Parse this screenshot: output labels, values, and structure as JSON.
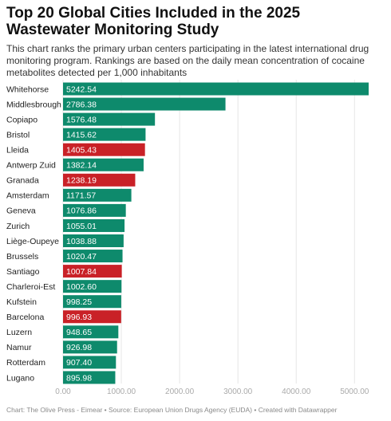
{
  "header": {
    "title": "Top 20 Global Cities Included in the 2025 Wastewater Monitoring Study",
    "subtitle": "This chart ranks the primary urban centers participating in the latest international drug monitoring program. Rankings are based on the daily mean concentration of cocaine metabolites detected per 1,000 inhabitants"
  },
  "footer": {
    "text": "Chart: The Olive Press - Eimear • Source: European Union Drugs Agency (EUDA) • Created with Datawrapper"
  },
  "colors": {
    "default_bar": "#0e8a6c",
    "highlight_bar": "#c92127",
    "grid": "#e6e6e6",
    "tick_label": "#aaaaaa",
    "value_label": "#ffffff"
  },
  "chart_data": {
    "type": "bar",
    "orientation": "horizontal",
    "categories": [
      "Whitehorse",
      "Middlesbrough",
      "Copiapo",
      "Bristol",
      "Lleida",
      "Antwerp Zuid",
      "Granada",
      "Amsterdam",
      "Geneva",
      "Zurich",
      "Liège-Oupeye",
      "Brussels",
      "Santiago",
      "Charleroi-Est",
      "Kufstein",
      "Barcelona",
      "Luzern",
      "Namur",
      "Rotterdam",
      "Lugano"
    ],
    "values": [
      5242.54,
      2786.38,
      1576.48,
      1415.62,
      1405.43,
      1382.14,
      1238.19,
      1171.57,
      1076.86,
      1055.01,
      1038.88,
      1020.47,
      1007.84,
      1002.6,
      998.25,
      996.93,
      948.65,
      926.98,
      907.4,
      895.98
    ],
    "value_labels": [
      "5242.54",
      "2786.38",
      "1576.48",
      "1415.62",
      "1405.43",
      "1382.14",
      "1238.19",
      "1171.57",
      "1076.86",
      "1055.01",
      "1038.88",
      "1020.47",
      "1007.84",
      "1002.60",
      "998.25",
      "996.93",
      "948.65",
      "926.98",
      "907.40",
      "895.98"
    ],
    "highlighted": [
      "Lleida",
      "Granada",
      "Santiago",
      "Barcelona"
    ],
    "xlim": [
      0,
      5242.54
    ],
    "xticks": [
      0,
      1000,
      2000,
      3000,
      4000,
      5000
    ],
    "xtick_labels": [
      "0.00",
      "1000.00",
      "2000.00",
      "3000.00",
      "4000.00",
      "5000.00"
    ],
    "grid": true,
    "xlabel": "",
    "ylabel": ""
  }
}
